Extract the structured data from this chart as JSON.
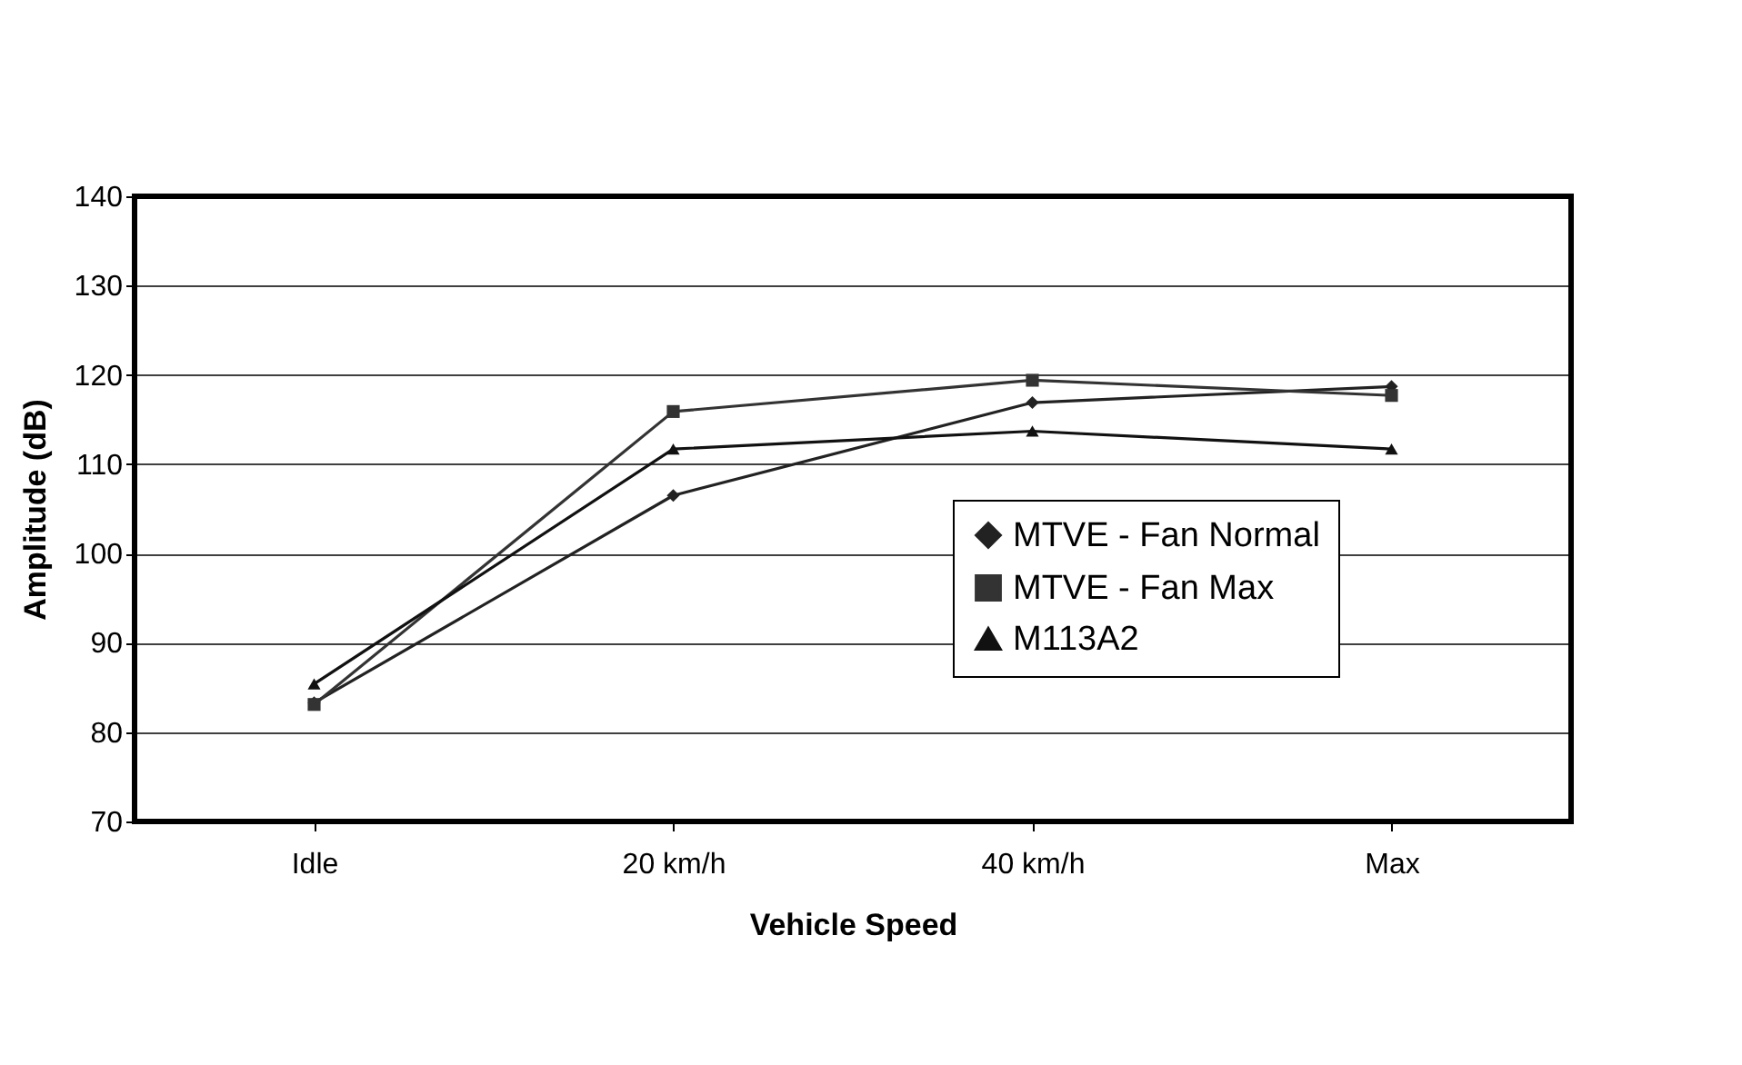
{
  "chart_data": {
    "type": "line",
    "xlabel": "Vehicle Speed",
    "ylabel": "Amplitude (dB)",
    "categories": [
      "Idle",
      "20 km/h",
      "40 km/h",
      "Max"
    ],
    "ylim": [
      70,
      140
    ],
    "yticks": [
      70,
      80,
      90,
      100,
      110,
      120,
      130,
      140
    ],
    "grid": "y",
    "legend": "right",
    "series": [
      {
        "name": "MTVE - Fan Normal",
        "color": "#222222",
        "marker": "diamond",
        "values": [
          83.3,
          106.5,
          116.9,
          118.7
        ]
      },
      {
        "name": "MTVE - Fan Max",
        "color": "#333333",
        "marker": "square",
        "values": [
          83.1,
          115.9,
          119.4,
          117.7
        ]
      },
      {
        "name": "M113A2",
        "color": "#111111",
        "marker": "triangle",
        "values": [
          85.4,
          111.7,
          113.7,
          111.7
        ]
      }
    ]
  }
}
